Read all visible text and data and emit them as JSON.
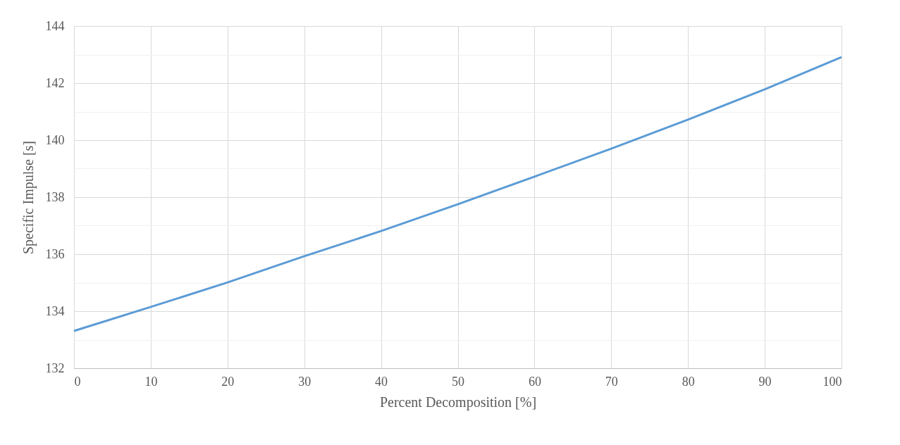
{
  "chart_data": {
    "type": "line",
    "xlabel": "Percent Decomposition [%]",
    "ylabel": "Specific Impulse [s]",
    "x": [
      0,
      10,
      20,
      30,
      40,
      50,
      60,
      70,
      80,
      90,
      100
    ],
    "series": [
      {
        "color": "#5b9bd5",
        "values": [
          133.31,
          134.15,
          135.01,
          135.93,
          136.81,
          137.75,
          138.72,
          139.7,
          140.72,
          141.78,
          142.91
        ]
      }
    ],
    "xlim": [
      0,
      100
    ],
    "xticks": [
      0,
      10,
      20,
      30,
      40,
      50,
      60,
      70,
      80,
      90,
      100
    ],
    "ylim": [
      132,
      144
    ],
    "yticks": [
      132,
      {
        "value": 133,
        "label": null
      },
      134,
      {
        "value": 135,
        "label": null
      },
      136,
      {
        "value": 137,
        "label": null
      },
      138,
      {
        "value": 139,
        "label": null
      },
      140,
      {
        "value": 141,
        "label": null
      },
      142,
      {
        "value": 143,
        "label": null
      },
      144
    ],
    "grid": true,
    "marker": "none",
    "line_style": "solid",
    "legend": false
  }
}
